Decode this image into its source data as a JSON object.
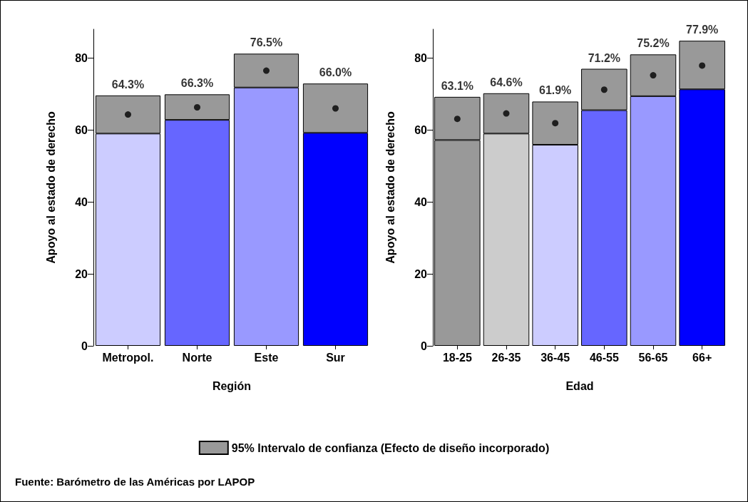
{
  "chart_data": [
    {
      "type": "bar",
      "stacked": true,
      "categories": [
        "Metropol.",
        "Norte",
        "Este",
        "Sur"
      ],
      "xlabel": "Región",
      "ylabel": "Apoyo al estado de derecho",
      "ylim": [
        0,
        88
      ],
      "yticks": [
        0,
        20,
        40,
        60,
        80
      ],
      "grid": false,
      "legend": "bottom",
      "annotations": [
        "Fuente: Barómetro de las Américas por LAPOP"
      ],
      "series": [
        {
          "colors": [
            "#ccccff",
            "#6666ff",
            "#9999ff",
            "#0000ff"
          ],
          "values": [
            59.0,
            62.8,
            71.8,
            59.2
          ]
        },
        {
          "name": "95% Intervalo de confianza (Efecto de diseño incorporado)",
          "color": "#999999",
          "values": [
            10.6,
            7.1,
            9.4,
            13.7
          ]
        },
        {
          "type": "scatter",
          "color": "#000000",
          "marker": "circle",
          "values": [
            64.3,
            66.3,
            76.5,
            66.0
          ],
          "value_labels": [
            "64.3%",
            "66.3%",
            "76.5%",
            "66.0%"
          ]
        }
      ]
    },
    {
      "type": "bar",
      "stacked": true,
      "categories": [
        "18-25",
        "26-35",
        "36-45",
        "46-55",
        "56-65",
        "66+"
      ],
      "xlabel": "Edad",
      "ylabel": "Apoyo al estado de derecho",
      "ylim": [
        0,
        88
      ],
      "yticks": [
        0,
        20,
        40,
        60,
        80
      ],
      "grid": false,
      "legend": false,
      "series": [
        {
          "colors": [
            "#999999",
            "#cccccc",
            "#ccccff",
            "#6666ff",
            "#9999ff",
            "#0000ff"
          ],
          "values": [
            57.2,
            59.0,
            55.9,
            65.5,
            69.4,
            71.3
          ]
        },
        {
          "color": "#999999",
          "values": [
            12.0,
            11.2,
            12.0,
            11.5,
            11.6,
            13.5
          ]
        },
        {
          "type": "scatter",
          "color": "#000000",
          "marker": "circle",
          "values": [
            63.1,
            64.6,
            61.9,
            71.2,
            75.2,
            77.9
          ],
          "value_labels": [
            "63.1%",
            "64.6%",
            "61.9%",
            "71.2%",
            "75.2%",
            "77.9%"
          ]
        }
      ]
    }
  ]
}
